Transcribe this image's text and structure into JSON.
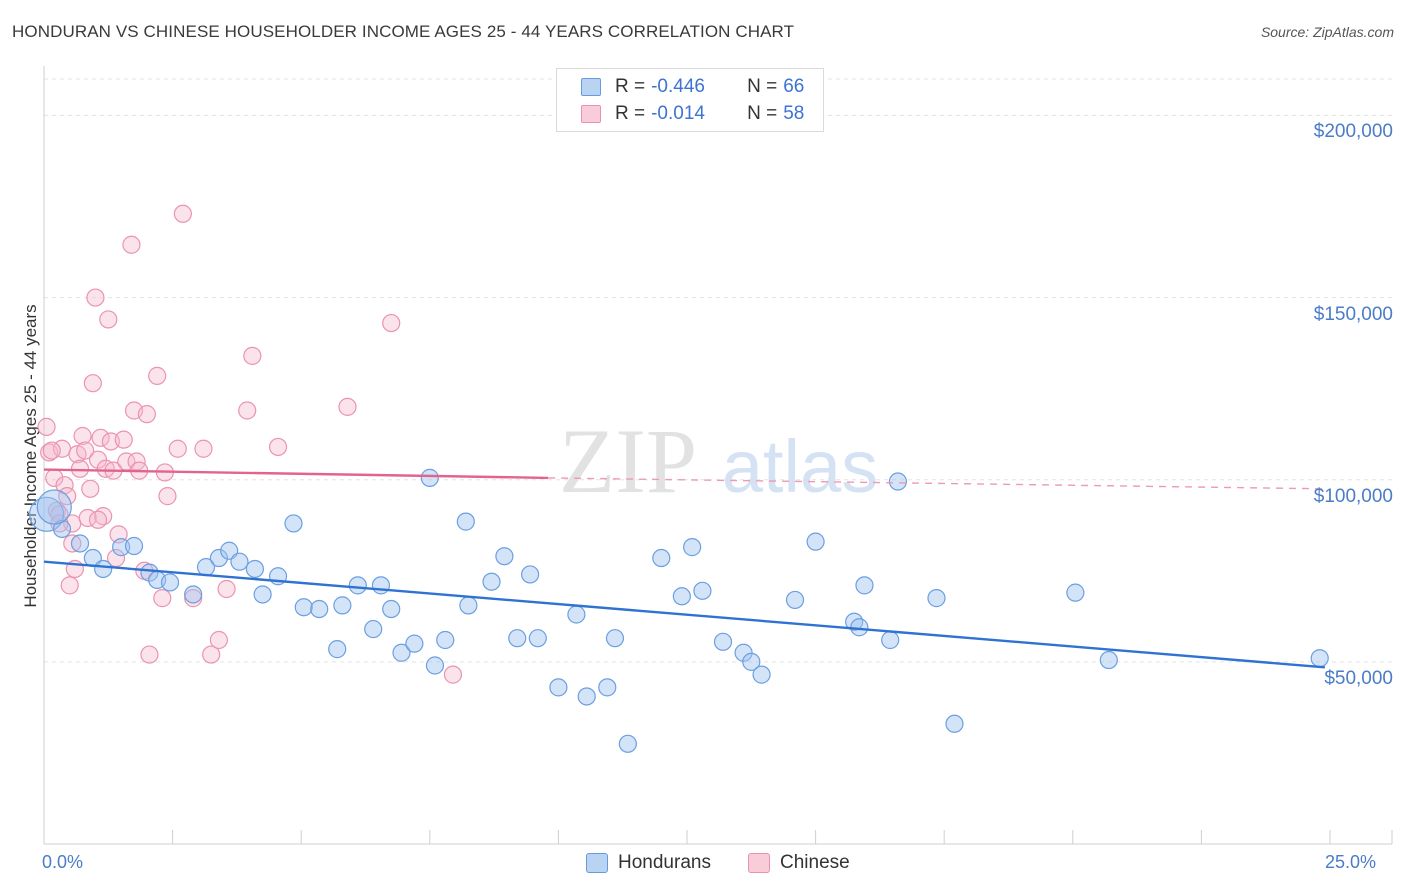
{
  "title": "HONDURAN VS CHINESE HOUSEHOLDER INCOME AGES 25 - 44 YEARS CORRELATION CHART",
  "source": "Source: ZipAtlas.com",
  "watermark": {
    "zip": "ZIP",
    "atlas": "atlas"
  },
  "colors": {
    "blue": "#4a86d8",
    "blue_fill": "#a9c8ef",
    "pink": "#e8729a",
    "pink_fill": "#f4b8cb",
    "tick_text": "#4a7cc7"
  },
  "legend": {
    "rows": [
      {
        "r_label": "R =",
        "r_value": "-0.446",
        "n_label": "N =",
        "n_value": "66"
      },
      {
        "r_label": "R =",
        "r_value": "-0.014",
        "n_label": "N =",
        "n_value": "58"
      }
    ]
  },
  "bottom_legend": {
    "hondurans": "Hondurans",
    "chinese": "Chinese"
  },
  "chart_data": {
    "type": "scatter",
    "title": "HONDURAN VS CHINESE HOUSEHOLDER INCOME AGES 25 - 44 YEARS CORRELATION CHART",
    "xlabel": "",
    "ylabel": "Householder Income Ages 25 - 44 years",
    "xlim": [
      0,
      25
    ],
    "ylim": [
      0,
      210000
    ],
    "x_tick_labels": [
      "0.0%",
      "25.0%"
    ],
    "y_ticks": [
      50000,
      100000,
      150000,
      200000
    ],
    "y_tick_labels": [
      "$50,000",
      "$100,000",
      "$150,000",
      "$200,000"
    ],
    "series": [
      {
        "name": "Hondurans",
        "color": "#4a86d8",
        "trend": {
          "x": [
            0.0,
            24.9
          ],
          "y": [
            77500,
            48500
          ]
        },
        "points": [
          [
            0.05,
            90500
          ],
          [
            0.35,
            86500
          ],
          [
            0.7,
            82500
          ],
          [
            0.95,
            78500
          ],
          [
            1.15,
            75500
          ],
          [
            1.5,
            81500
          ],
          [
            1.75,
            81800
          ],
          [
            2.05,
            74500
          ],
          [
            2.2,
            72500
          ],
          [
            2.45,
            71800
          ],
          [
            2.9,
            68500
          ],
          [
            3.15,
            76000
          ],
          [
            3.4,
            78500
          ],
          [
            3.6,
            80500
          ],
          [
            3.8,
            77500
          ],
          [
            4.1,
            75500
          ],
          [
            4.25,
            68500
          ],
          [
            4.55,
            73500
          ],
          [
            4.85,
            88000
          ],
          [
            5.05,
            65000
          ],
          [
            5.35,
            64500
          ],
          [
            5.7,
            53500
          ],
          [
            5.8,
            65500
          ],
          [
            6.1,
            71000
          ],
          [
            6.4,
            59000
          ],
          [
            6.55,
            71000
          ],
          [
            6.75,
            64500
          ],
          [
            6.95,
            52500
          ],
          [
            7.2,
            55000
          ],
          [
            7.5,
            100500
          ],
          [
            7.6,
            49000
          ],
          [
            7.8,
            56000
          ],
          [
            8.2,
            88500
          ],
          [
            8.25,
            65500
          ],
          [
            8.7,
            72000
          ],
          [
            8.95,
            79000
          ],
          [
            9.2,
            56500
          ],
          [
            9.45,
            74000
          ],
          [
            9.6,
            56500
          ],
          [
            10.0,
            43000
          ],
          [
            10.35,
            63000
          ],
          [
            10.55,
            40500
          ],
          [
            10.95,
            43000
          ],
          [
            11.1,
            56500
          ],
          [
            11.35,
            27500
          ],
          [
            12.0,
            78500
          ],
          [
            12.4,
            68000
          ],
          [
            12.6,
            81500
          ],
          [
            12.8,
            69500
          ],
          [
            13.2,
            55500
          ],
          [
            13.6,
            52500
          ],
          [
            13.75,
            50000
          ],
          [
            13.95,
            46500
          ],
          [
            14.6,
            67000
          ],
          [
            15.0,
            83000
          ],
          [
            15.75,
            61000
          ],
          [
            15.85,
            59500
          ],
          [
            15.95,
            71000
          ],
          [
            16.45,
            56000
          ],
          [
            16.6,
            99500
          ],
          [
            17.35,
            67500
          ],
          [
            17.7,
            33000
          ],
          [
            20.05,
            69000
          ],
          [
            20.7,
            50500
          ],
          [
            24.8,
            51000
          ],
          [
            0.2,
            92500
          ]
        ]
      },
      {
        "name": "Chinese",
        "color": "#e8729a",
        "trend": {
          "x": [
            0.0,
            9.8
          ],
          "y": [
            102800,
            100500
          ],
          "dashed_to": [
            24.9,
            97500
          ]
        },
        "points": [
          [
            0.05,
            114500
          ],
          [
            0.1,
            107500
          ],
          [
            0.2,
            100500
          ],
          [
            0.25,
            91500
          ],
          [
            0.3,
            90500
          ],
          [
            0.35,
            108500
          ],
          [
            0.4,
            98500
          ],
          [
            0.45,
            95500
          ],
          [
            0.5,
            71000
          ],
          [
            0.55,
            88000
          ],
          [
            0.6,
            75500
          ],
          [
            0.65,
            107000
          ],
          [
            0.7,
            103000
          ],
          [
            0.75,
            112000
          ],
          [
            0.8,
            108000
          ],
          [
            0.85,
            89500
          ],
          [
            0.9,
            97500
          ],
          [
            0.95,
            126500
          ],
          [
            1.0,
            150000
          ],
          [
            1.05,
            105500
          ],
          [
            1.1,
            111500
          ],
          [
            1.15,
            90000
          ],
          [
            1.2,
            103000
          ],
          [
            1.25,
            144000
          ],
          [
            1.3,
            110500
          ],
          [
            1.35,
            102500
          ],
          [
            1.4,
            78500
          ],
          [
            1.45,
            85000
          ],
          [
            1.55,
            111000
          ],
          [
            1.6,
            105000
          ],
          [
            1.7,
            164500
          ],
          [
            1.75,
            119000
          ],
          [
            1.8,
            105000
          ],
          [
            1.85,
            102500
          ],
          [
            1.95,
            75000
          ],
          [
            2.0,
            118000
          ],
          [
            2.05,
            52000
          ],
          [
            2.2,
            128500
          ],
          [
            2.3,
            67500
          ],
          [
            2.35,
            102000
          ],
          [
            2.4,
            95500
          ],
          [
            2.6,
            108500
          ],
          [
            2.7,
            173000
          ],
          [
            2.9,
            67500
          ],
          [
            3.1,
            108500
          ],
          [
            3.25,
            52000
          ],
          [
            3.4,
            56000
          ],
          [
            3.55,
            70000
          ],
          [
            3.95,
            119000
          ],
          [
            4.05,
            134000
          ],
          [
            4.55,
            109000
          ],
          [
            5.9,
            120000
          ],
          [
            6.75,
            143000
          ],
          [
            7.95,
            46500
          ],
          [
            0.15,
            108000
          ],
          [
            0.55,
            82500
          ],
          [
            1.05,
            89000
          ],
          [
            0.3,
            88000
          ]
        ]
      }
    ]
  }
}
